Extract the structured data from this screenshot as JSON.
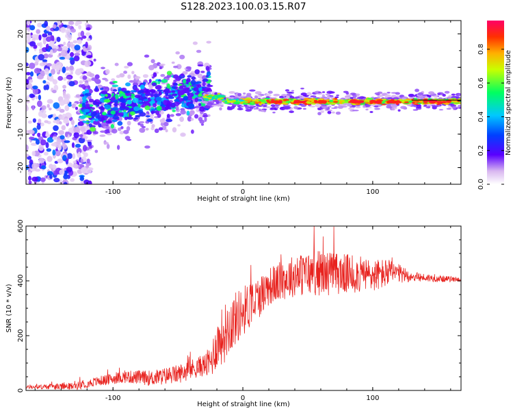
{
  "figure_title": "S128.2023.100.03.15.R07",
  "chart_data": [
    {
      "type": "heatmap",
      "title": "S128.2023.100.03.15.R07",
      "xlabel": "Height of straight line (km)",
      "ylabel": "Frequency (Hz)",
      "xlim": [
        -167,
        168
      ],
      "ylim": [
        -25,
        24
      ],
      "x_ticks": [
        -100,
        0,
        100
      ],
      "y_ticks": [
        -20,
        -10,
        0,
        10,
        20
      ],
      "colorbar": {
        "label": "Normalized spectral amplitude",
        "range": [
          0.0,
          0.97
        ],
        "ticks": [
          0.0,
          0.2,
          0.4,
          0.6,
          0.8
        ],
        "colormap": [
          "#ffffff",
          "#6a0dad",
          "#3a00ff",
          "#0080ff",
          "#00e0e0",
          "#00ff00",
          "#ffff00",
          "#ff8000",
          "#ff0040"
        ]
      },
      "features": [
        {
          "x": [
            -167,
            -120
          ],
          "freq_center": 0,
          "freq_spread": 24,
          "amplitude": 0.25
        },
        {
          "x": [
            -120,
            -30
          ],
          "freq_center": -3,
          "freq_spread": 8,
          "amplitude": 0.45,
          "trend": "rising to +3 Hz"
        },
        {
          "x": [
            -30,
            168
          ],
          "freq_center": 0,
          "freq_spread": 1.2,
          "amplitude": 0.85
        }
      ]
    },
    {
      "type": "line",
      "xlabel": "Height of straight line (km)",
      "ylabel": "SNR (10 * v/v)",
      "xlim": [
        -167,
        168
      ],
      "ylim": [
        0,
        600
      ],
      "x_ticks": [
        -100,
        0,
        100
      ],
      "y_ticks": [
        0,
        200,
        400,
        600
      ],
      "color": "#e8231f",
      "profile": [
        {
          "x": -167,
          "y": 12
        },
        {
          "x": -130,
          "y": 15
        },
        {
          "x": -110,
          "y": 35
        },
        {
          "x": -90,
          "y": 50
        },
        {
          "x": -70,
          "y": 45
        },
        {
          "x": -50,
          "y": 60
        },
        {
          "x": -35,
          "y": 85
        },
        {
          "x": -25,
          "y": 100
        },
        {
          "x": -20,
          "y": 170
        },
        {
          "x": -10,
          "y": 240
        },
        {
          "x": 0,
          "y": 290
        },
        {
          "x": 10,
          "y": 330
        },
        {
          "x": 20,
          "y": 380
        },
        {
          "x": 40,
          "y": 420
        },
        {
          "x": 60,
          "y": 430
        },
        {
          "x": 80,
          "y": 425
        },
        {
          "x": 100,
          "y": 420
        },
        {
          "x": 115,
          "y": 430
        },
        {
          "x": 130,
          "y": 415
        },
        {
          "x": 150,
          "y": 408
        },
        {
          "x": 168,
          "y": 405
        }
      ],
      "noise_amplitude": [
        {
          "x": -167,
          "a": 6
        },
        {
          "x": -100,
          "a": 20
        },
        {
          "x": -30,
          "a": 40
        },
        {
          "x": -15,
          "a": 110
        },
        {
          "x": 20,
          "a": 70
        },
        {
          "x": 60,
          "a": 85
        },
        {
          "x": 110,
          "a": 55
        },
        {
          "x": 130,
          "a": 18
        },
        {
          "x": 168,
          "a": 8
        }
      ]
    }
  ]
}
